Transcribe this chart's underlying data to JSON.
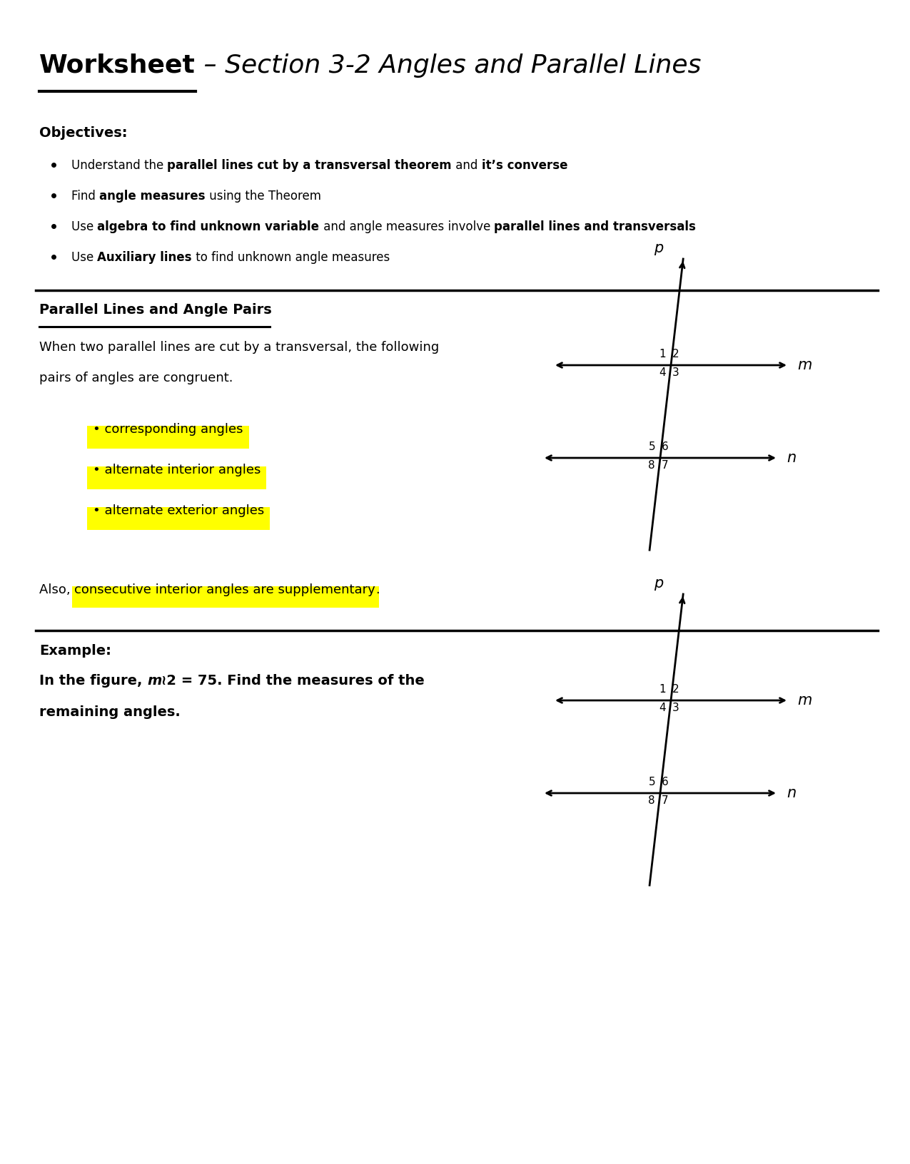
{
  "bg_color": "#FFFFFF",
  "highlight_color": "#FFFF00",
  "title_bold": "Worksheet",
  "title_italic": " – Section 3-2 Angles and Parallel Lines",
  "obj_header": "Objectives:",
  "bullet_lines": [
    [
      [
        "Understand the ",
        "normal"
      ],
      [
        "parallel lines cut by a transversal theorem",
        "bold"
      ],
      [
        " and ",
        "normal"
      ],
      [
        "it’s converse",
        "bold"
      ]
    ],
    [
      [
        "Find ",
        "normal"
      ],
      [
        "angle measures",
        "bold"
      ],
      [
        " using the Theorem",
        "normal"
      ]
    ],
    [
      [
        "Use ",
        "normal"
      ],
      [
        "algebra to find unknown variable",
        "bold"
      ],
      [
        " and angle measures involve ",
        "normal"
      ],
      [
        "parallel lines and transversals",
        "bold"
      ]
    ],
    [
      [
        "Use ",
        "normal"
      ],
      [
        "Auxiliary lines",
        "bold"
      ],
      [
        " to find unknown angle measures",
        "normal"
      ]
    ]
  ],
  "sec2_header": "Parallel Lines and Angle Pairs ",
  "para1": "When two parallel lines are cut by a transversal, the following",
  "para2": "pairs of angles are congruent.",
  "highlights": [
    "• corresponding angles",
    "• alternate interior angles",
    "• alternate exterior angles"
  ],
  "also_prefix": "Also, ",
  "also_hl": "consecutive interior angles are supplementary",
  "also_suffix": ".",
  "example_header": "Example:",
  "example_bold_line1_a": "In the figure, ",
  "example_bold_line1_b": "m",
  "example_bold_line1_c": "≀2 = 75. Find the measures of the",
  "example_bold_line2": "remaining angles."
}
